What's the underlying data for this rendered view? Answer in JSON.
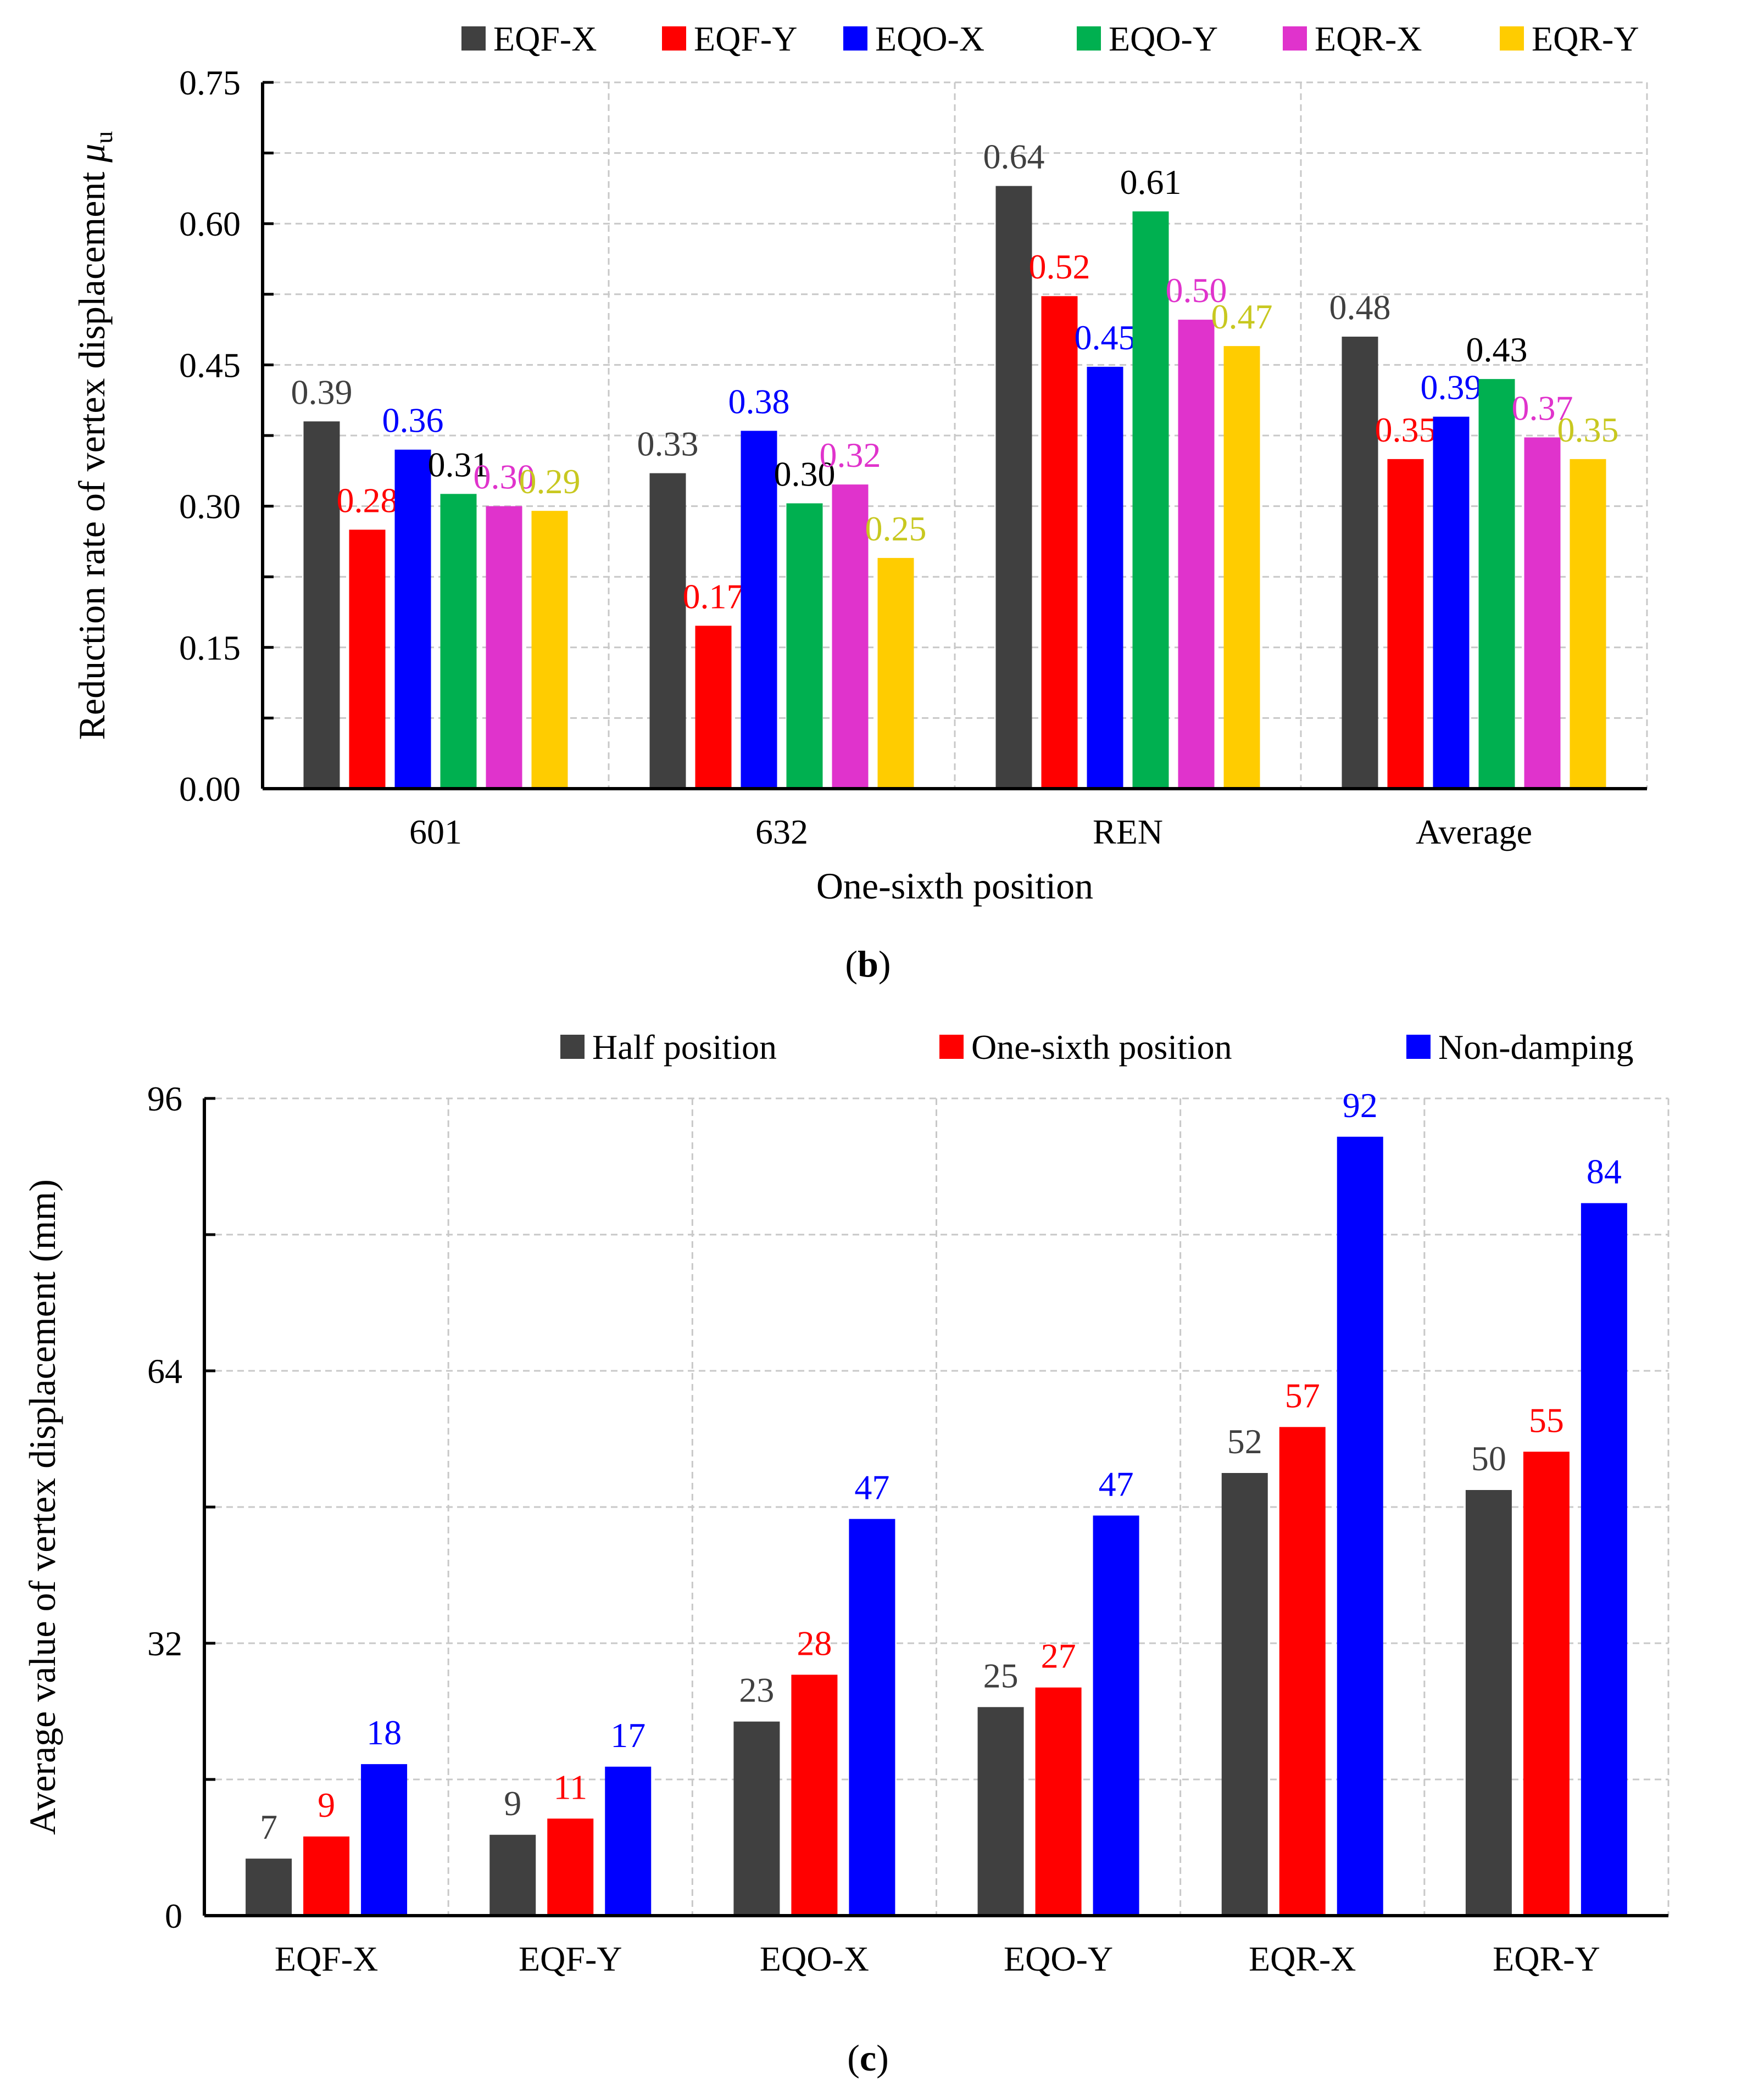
{
  "colors": {
    "EQF-X": "#404040",
    "EQF-Y": "#ff0000",
    "EQO-X": "#0000ff",
    "EQO-Y": "#00b050",
    "EQR-X": "#e033cc",
    "EQR-Y": "#ffcc00",
    "Half position": "#404040",
    "One-sixth position": "#ff0000",
    "Non-damping": "#0000ff"
  },
  "label_colors": {
    "EQF-X": "#404040",
    "EQF-Y": "#ff0000",
    "EQO-X": "#0000ff",
    "EQO-Y": "#000000",
    "EQR-X": "#e033cc",
    "EQR-Y": "#c8c820",
    "Half position": "#404040",
    "One-sixth position": "#ff0000",
    "Non-damping": "#0000ff"
  },
  "chart_data": [
    {
      "id": "b",
      "type": "bar",
      "panel_label": "b",
      "title": "",
      "xlabel": "One-sixth position",
      "ylabel_main": "Reduction rate of vertex displacement ",
      "ylabel_symbol": "μ",
      "ylabel_sub": "u",
      "ylim": [
        0,
        0.75
      ],
      "yticks": [
        "0.00",
        "0.15",
        "0.30",
        "0.45",
        "0.60",
        "0.75"
      ],
      "ytick_values": [
        0,
        0.15,
        0.3,
        0.45,
        0.6,
        0.75
      ],
      "minor_step": 0.075,
      "grid": true,
      "legend_position": "top",
      "categories": [
        "601",
        "632",
        "REN",
        "Average"
      ],
      "series": [
        {
          "name": "EQF-X",
          "values": [
            0.39,
            0.335,
            0.64,
            0.48
          ],
          "labels": [
            "0.39",
            "0.33",
            "0.64",
            "0.48"
          ]
        },
        {
          "name": "EQF-Y",
          "values": [
            0.275,
            0.173,
            0.523,
            0.35
          ],
          "labels": [
            "0.28",
            "0.17",
            "0.52",
            "0.35"
          ]
        },
        {
          "name": "EQO-X",
          "values": [
            0.36,
            0.38,
            0.448,
            0.395
          ],
          "labels": [
            "0.36",
            "0.38",
            "0.45",
            "0.39"
          ]
        },
        {
          "name": "EQO-Y",
          "values": [
            0.313,
            0.303,
            0.613,
            0.435
          ],
          "labels": [
            "0.31",
            "0.30",
            "0.61",
            "0.43"
          ]
        },
        {
          "name": "EQR-X",
          "values": [
            0.3,
            0.323,
            0.498,
            0.373
          ],
          "labels": [
            "0.30",
            "0.32",
            "0.50",
            "0.37"
          ]
        },
        {
          "name": "EQR-Y",
          "values": [
            0.295,
            0.245,
            0.47,
            0.35
          ],
          "labels": [
            "0.29",
            "0.25",
            "0.47",
            "0.35"
          ]
        }
      ]
    },
    {
      "id": "c",
      "type": "bar",
      "panel_label": "c",
      "title": "",
      "xlabel": "",
      "ylabel_main": "Average value of vertex displacement (mm)",
      "ylim": [
        0,
        96
      ],
      "yticks": [
        "0",
        "32",
        "64",
        "96"
      ],
      "ytick_values": [
        0,
        32,
        64,
        96
      ],
      "minor_step": 16,
      "grid": true,
      "legend_position": "top",
      "categories": [
        "EQF-X",
        "EQF-Y",
        "EQO-X",
        "EQO-Y",
        "EQR-X",
        "EQR-Y"
      ],
      "series": [
        {
          "name": "Half position",
          "values": [
            6.7,
            9.5,
            22.8,
            24.5,
            52,
            50
          ],
          "labels": [
            "7",
            "9",
            "23",
            "25",
            "52",
            "50"
          ]
        },
        {
          "name": "One-sixth position",
          "values": [
            9.3,
            11.4,
            28.3,
            26.8,
            57.4,
            54.5
          ],
          "labels": [
            "9",
            "11",
            "28",
            "27",
            "57",
            "55"
          ]
        },
        {
          "name": "Non-damping",
          "values": [
            17.8,
            17.5,
            46.6,
            47,
            91.5,
            83.7
          ],
          "labels": [
            "18",
            "17",
            "47",
            "47",
            "92",
            "84"
          ]
        }
      ]
    }
  ]
}
